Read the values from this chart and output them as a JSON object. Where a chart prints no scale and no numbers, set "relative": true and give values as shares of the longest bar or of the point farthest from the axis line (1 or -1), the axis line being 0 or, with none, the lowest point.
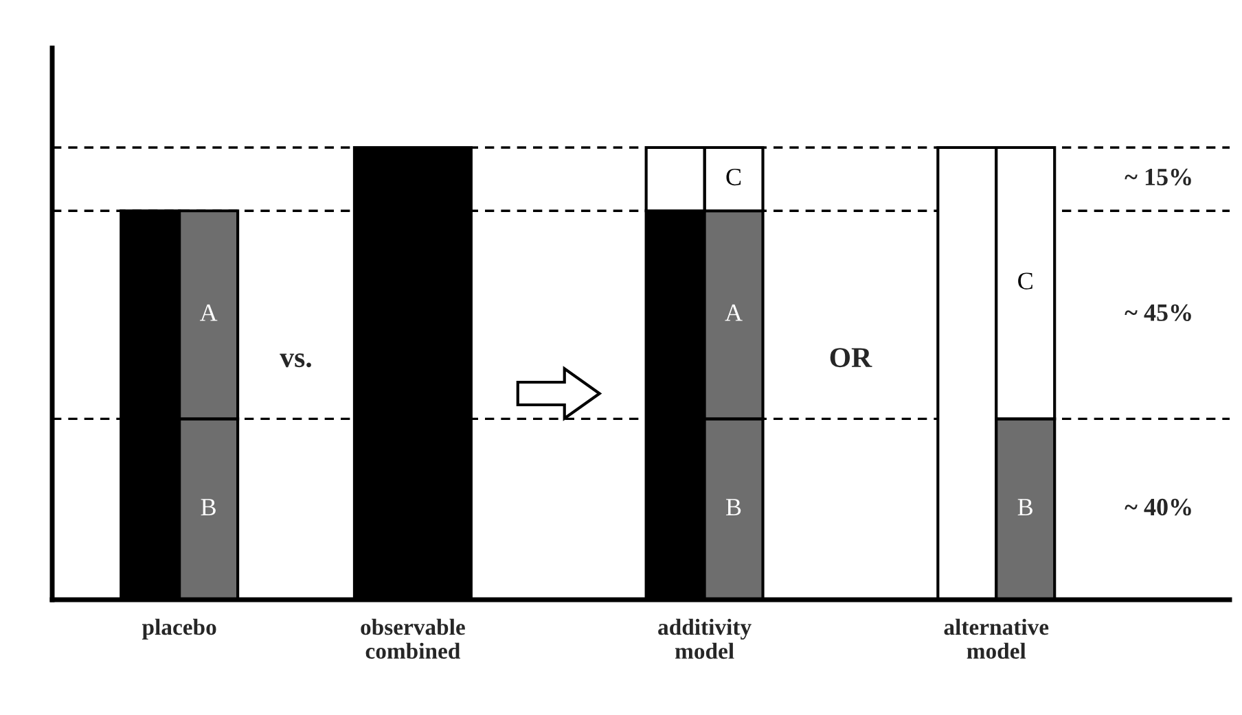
{
  "chart_data": {
    "type": "bar",
    "relative": true,
    "stacked": true,
    "categories": [
      "placebo",
      null,
      null,
      null,
      "observable\ncombined",
      null,
      null,
      null,
      null,
      "additivity\nmodel",
      null,
      null,
      null,
      null,
      "alternative\nmodel",
      null
    ],
    "series": [
      {
        "values": [
          0.86,
          null,
          null,
          null,
          1,
          1,
          null,
          null,
          null,
          0.86,
          null,
          null,
          null,
          null,
          1,
          null
        ],
        "colors": [
          "#000000",
          null,
          null,
          null,
          "#000000",
          "#000000",
          null,
          null,
          null,
          "#000000",
          null,
          null,
          null,
          null,
          "#ffffff",
          null
        ]
      },
      {
        "name": "B",
        "color": "#6e6e6e",
        "values": [
          null,
          0.4,
          null,
          null,
          null,
          null,
          null,
          null,
          null,
          null,
          0.4,
          null,
          null,
          null,
          null,
          0.4
        ]
      },
      {
        "name": "A",
        "color": "#6e6e6e",
        "values": [
          null,
          0.46,
          null,
          null,
          null,
          null,
          null,
          null,
          null,
          null,
          0.46,
          null,
          null,
          null,
          null,
          null
        ]
      },
      {
        "name": "C",
        "color": "#ffffff",
        "values": [
          null,
          null,
          null,
          null,
          null,
          null,
          null,
          null,
          null,
          null,
          0.14,
          null,
          null,
          null,
          null,
          0.6
        ]
      },
      {
        "color": "#ffffff",
        "values": [
          null,
          null,
          null,
          null,
          null,
          null,
          null,
          null,
          null,
          0.14,
          null,
          null,
          null,
          null,
          null,
          null
        ]
      }
    ],
    "ref_lines": [
      {
        "axis": "y",
        "value": 1
      },
      {
        "axis": "y",
        "value": 0.86
      },
      {
        "axis": "y",
        "value": 0.4
      }
    ],
    "line_style": "dashed",
    "annotations": [
      "vs.",
      "OR",
      "~ 15%",
      "~ 45%",
      "~ 40%"
    ],
    "grid": false,
    "legend": false
  }
}
